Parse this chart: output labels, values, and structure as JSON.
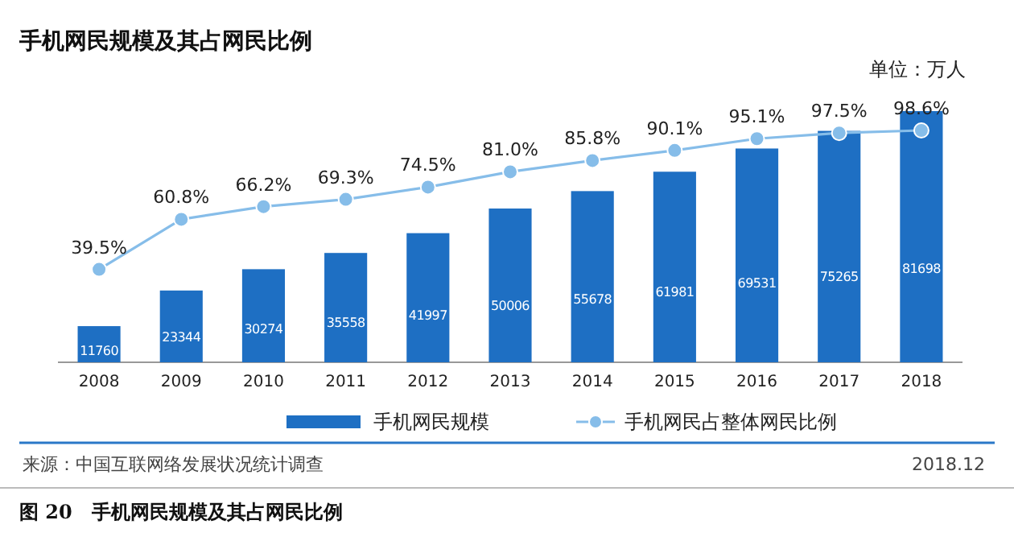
{
  "chart_data": {
    "type": "bar",
    "title": "手机网民规模及其占网民比例",
    "categories": [
      "2008",
      "2009",
      "2010",
      "2011",
      "2012",
      "2013",
      "2014",
      "2015",
      "2016",
      "2017",
      "2018"
    ],
    "series": [
      {
        "name": "手机网民规模",
        "color": "#1e6fc3",
        "values": [
          11760,
          23344,
          30274,
          35558,
          41997,
          50006,
          55678,
          61981,
          69531,
          75265,
          81698
        ]
      },
      {
        "name": "手机网民占整体网民比例",
        "type": "line",
        "axis": "y2",
        "color": "#86bde9",
        "marker": "circle",
        "value_labels": [
          "39.5%",
          "60.8%",
          "66.2%",
          "69.3%",
          "74.5%",
          "81.0%",
          "85.8%",
          "90.1%",
          "95.1%",
          "97.5%",
          "98.6%"
        ],
        "values": [
          39.5,
          60.8,
          66.2,
          69.3,
          74.5,
          81.0,
          85.8,
          90.1,
          95.1,
          97.5,
          98.6
        ]
      }
    ],
    "data_labels": true,
    "legend": "bottom",
    "tick_labels": "x",
    "annotations": [
      "单位：万人",
      "来源：中国互联网络发展状况统计调查",
      "2018.12",
      "图 20　手机网民规模及其占网民比例"
    ]
  }
}
